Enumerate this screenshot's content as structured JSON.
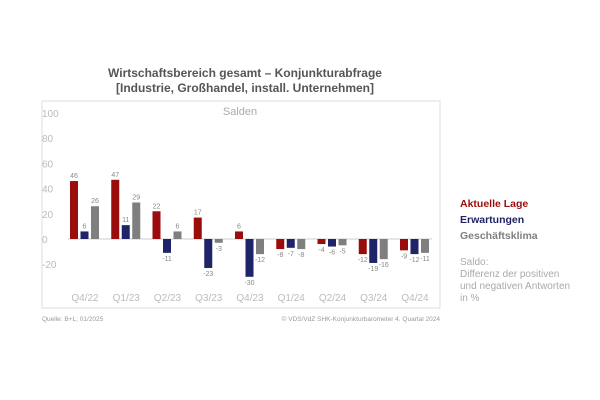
{
  "title_line1": "Wirtschaftsbereich gesamt – Konjunkturabfrage",
  "title_line2": "[Industrie, Großhandel, install. Unternehmen]",
  "chart_data": {
    "type": "bar",
    "subtitle": "Salden",
    "categories": [
      "Q4/22",
      "Q1/23",
      "Q2/23",
      "Q3/23",
      "Q4/23",
      "Q1/24",
      "Q2/24",
      "Q3/24",
      "Q4/24"
    ],
    "series": [
      {
        "name": "Aktuelle Lage",
        "color": "#9b0d0d",
        "values": [
          46,
          47,
          22,
          17,
          6,
          -8,
          -4,
          -12,
          -9
        ]
      },
      {
        "name": "Erwartungen",
        "color": "#1f2367",
        "values": [
          6,
          11,
          -11,
          -23,
          -30,
          -7,
          -6,
          -19,
          -12
        ]
      },
      {
        "name": "Geschäftsklima",
        "color": "#7f7f7f",
        "values": [
          26,
          29,
          6,
          -3,
          -12,
          -8,
          -5,
          -16,
          -11
        ]
      }
    ],
    "yticks": [
      100,
      80,
      60,
      40,
      20,
      0,
      -20
    ],
    "ylim": [
      -35,
      100
    ],
    "grid": false,
    "legend_placement": "right"
  },
  "note": [
    "Saldo:",
    "Differenz der positiven",
    "und negativen Antworten",
    "in %"
  ],
  "source": "Quelle: B+L; 01/2025",
  "copyright": "© VDS/VdZ SHK-Konjunkturbarometer 4. Quartal 2024"
}
